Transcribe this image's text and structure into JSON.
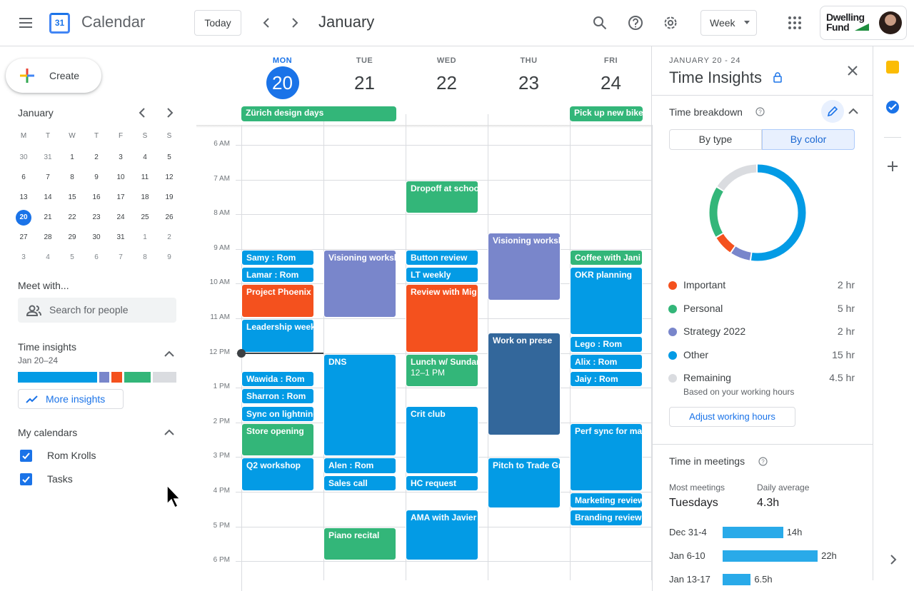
{
  "header": {
    "app_name": "Calendar",
    "logo_day": "31",
    "today_button": "Today",
    "month": "January",
    "view": "Week",
    "brand": "Dwelling Fund"
  },
  "sidebar": {
    "create": "Create",
    "mini_calendar": {
      "month": "January",
      "weekdays": [
        "M",
        "T",
        "W",
        "T",
        "F",
        "S",
        "S"
      ],
      "weeks": [
        [
          "30",
          "31",
          "1",
          "2",
          "3",
          "4",
          "5"
        ],
        [
          "6",
          "7",
          "8",
          "9",
          "10",
          "11",
          "12"
        ],
        [
          "13",
          "14",
          "15",
          "16",
          "17",
          "18",
          "19"
        ],
        [
          "20",
          "21",
          "22",
          "23",
          "24",
          "25",
          "26"
        ],
        [
          "27",
          "28",
          "29",
          "30",
          "31",
          "1",
          "2"
        ],
        [
          "3",
          "4",
          "5",
          "6",
          "7",
          "8",
          "9"
        ]
      ],
      "selected": "20"
    },
    "meet_with": "Meet with...",
    "search_placeholder": "Search for people",
    "time_insights": {
      "title": "Time insights",
      "range": "Jan 20–24",
      "button": "More insights"
    },
    "my_calendars": {
      "title": "My calendars",
      "items": [
        "Rom Krolls",
        "Tasks"
      ]
    }
  },
  "week": {
    "days": [
      {
        "dow": "MON",
        "date": "20"
      },
      {
        "dow": "TUE",
        "date": "21"
      },
      {
        "dow": "WED",
        "date": "22"
      },
      {
        "dow": "THU",
        "date": "23"
      },
      {
        "dow": "FRI",
        "date": "24"
      }
    ],
    "today": 0,
    "hours": [
      {
        "value": 6,
        "label": "6 AM"
      },
      {
        "value": 7,
        "label": "7 AM"
      },
      {
        "value": 8,
        "label": "8 AM"
      },
      {
        "value": 9,
        "label": "9 AM"
      },
      {
        "value": 10,
        "label": "10 AM"
      },
      {
        "value": 11,
        "label": "11 AM"
      },
      {
        "value": 12,
        "label": "12 PM"
      },
      {
        "value": 13,
        "label": "1 PM"
      },
      {
        "value": 14,
        "label": "2 PM"
      },
      {
        "value": 15,
        "label": "3 PM"
      },
      {
        "value": 16,
        "label": "4 PM"
      },
      {
        "value": 17,
        "label": "5 PM"
      },
      {
        "value": 18,
        "label": "6 PM"
      }
    ],
    "now": 12,
    "all_day": [
      {
        "title": "Zürich design days",
        "day": 0,
        "days": 2,
        "color": "#33b679"
      },
      {
        "title": "Pick up new bike",
        "day": 4,
        "days": 1,
        "color": "#33b679"
      }
    ],
    "events": [
      {
        "day": 0,
        "start": 9,
        "end": 9.5,
        "title": "Samy : Rom",
        "color": "#039be5"
      },
      {
        "day": 0,
        "start": 9.5,
        "end": 10,
        "title": "Lamar : Rom",
        "color": "#039be5"
      },
      {
        "day": 0,
        "start": 10,
        "end": 11,
        "title": "Project Phoenix",
        "color": "#f4511e"
      },
      {
        "day": 0,
        "start": 11,
        "end": 12,
        "title": "Leadership week",
        "color": "#039be5"
      },
      {
        "day": 0,
        "start": 12.5,
        "end": 13,
        "title": "Wawida : Rom",
        "color": "#039be5"
      },
      {
        "day": 0,
        "start": 13,
        "end": 13.5,
        "title": "Sharron : Rom",
        "color": "#039be5"
      },
      {
        "day": 0,
        "start": 13.5,
        "end": 14,
        "title": "Sync on lightning",
        "color": "#039be5"
      },
      {
        "day": 0,
        "start": 14,
        "end": 15,
        "title": "Store opening",
        "color": "#33b679"
      },
      {
        "day": 0,
        "start": 15,
        "end": 16,
        "title": "Q2 workshop",
        "color": "#039be5"
      },
      {
        "day": 1,
        "start": 9,
        "end": 11,
        "title": "Visioning worksh",
        "color": "#7986cb"
      },
      {
        "day": 1,
        "start": 12,
        "end": 15,
        "title": "DNS",
        "color": "#039be5"
      },
      {
        "day": 1,
        "start": 15,
        "end": 15.5,
        "title": "Alen : Rom",
        "color": "#039be5"
      },
      {
        "day": 1,
        "start": 15.5,
        "end": 16,
        "title": "Sales call",
        "color": "#039be5"
      },
      {
        "day": 1,
        "start": 17,
        "end": 18,
        "title": "Piano recital",
        "color": "#33b679"
      },
      {
        "day": 2,
        "start": 7,
        "end": 8,
        "title": "Dropoff at schoo",
        "color": "#33b679"
      },
      {
        "day": 2,
        "start": 9,
        "end": 9.5,
        "title": "Button review",
        "color": "#039be5"
      },
      {
        "day": 2,
        "start": 9.5,
        "end": 10,
        "title": "LT weekly",
        "color": "#039be5"
      },
      {
        "day": 2,
        "start": 10,
        "end": 12,
        "title": "Review with Mig",
        "color": "#f4511e"
      },
      {
        "day": 2,
        "start": 12,
        "end": 13,
        "title": "Lunch w/ Sundar",
        "time": "12–1 PM",
        "color": "#33b679"
      },
      {
        "day": 2,
        "start": 13.5,
        "end": 15.5,
        "title": "Crit club",
        "color": "#039be5"
      },
      {
        "day": 2,
        "start": 15.5,
        "end": 16,
        "title": "HC request",
        "color": "#039be5"
      },
      {
        "day": 2,
        "start": 16.5,
        "end": 18,
        "title": "AMA with Javier",
        "color": "#039be5"
      },
      {
        "day": 3,
        "start": 8.5,
        "end": 10.5,
        "title": "Visioning worksh",
        "color": "#7986cb"
      },
      {
        "day": 3,
        "start": 11.4,
        "end": 14.4,
        "title": "Work on prese",
        "color": "#33679b"
      },
      {
        "day": 3,
        "start": 15,
        "end": 16.5,
        "title": "Pitch to Trade Gr",
        "color": "#039be5"
      },
      {
        "day": 4,
        "start": 9,
        "end": 9.5,
        "title": "Coffee with Jani",
        "color": "#33b679"
      },
      {
        "day": 4,
        "start": 9.5,
        "end": 11.5,
        "title": "OKR planning",
        "color": "#039be5"
      },
      {
        "day": 4,
        "start": 11.5,
        "end": 12,
        "title": "Lego : Rom",
        "color": "#039be5"
      },
      {
        "day": 4,
        "start": 12,
        "end": 12.5,
        "title": "Alix : Rom",
        "color": "#039be5"
      },
      {
        "day": 4,
        "start": 12.5,
        "end": 13,
        "title": "Jaiy : Rom",
        "color": "#039be5"
      },
      {
        "day": 4,
        "start": 14,
        "end": 16,
        "title": "Perf sync for ma",
        "color": "#039be5"
      },
      {
        "day": 4,
        "start": 16,
        "end": 16.5,
        "title": "Marketing review",
        "color": "#039be5"
      },
      {
        "day": 4,
        "start": 16.5,
        "end": 17,
        "title": "Branding review",
        "color": "#039be5"
      }
    ]
  },
  "insights": {
    "range": "JANUARY 20 - 24",
    "title": "Time Insights",
    "breakdown": {
      "title": "Time breakdown",
      "tabs": [
        "By type",
        "By color"
      ],
      "active_tab": 1,
      "items": [
        {
          "name": "Important",
          "value": 2,
          "value_label": "2 hr",
          "color": "#f4511e"
        },
        {
          "name": "Personal",
          "value": 5,
          "value_label": "5 hr",
          "color": "#33b679"
        },
        {
          "name": "Strategy 2022",
          "value": 2,
          "value_label": "2 hr",
          "color": "#7986cb"
        },
        {
          "name": "Other",
          "value": 15,
          "value_label": "15 hr",
          "color": "#039be5"
        },
        {
          "name": "Remaining",
          "value": 4.5,
          "value_label": "4.5 hr",
          "color": "#dadce0",
          "note": "Based on your working hours"
        }
      ],
      "button": "Adjust working hours"
    },
    "meetings": {
      "title": "Time in meetings",
      "most_label": "Most meetings",
      "most_value": "Tuesdays",
      "avg_label": "Daily average",
      "avg_value": "4.3h",
      "weeks": [
        {
          "label": "Dec 31-4",
          "value": 14,
          "value_label": "14h"
        },
        {
          "label": "Jan 6-10",
          "value": 22,
          "value_label": "22h"
        },
        {
          "label": "Jan 13-17",
          "value": 6.5,
          "value_label": "6.5h"
        }
      ]
    }
  }
}
